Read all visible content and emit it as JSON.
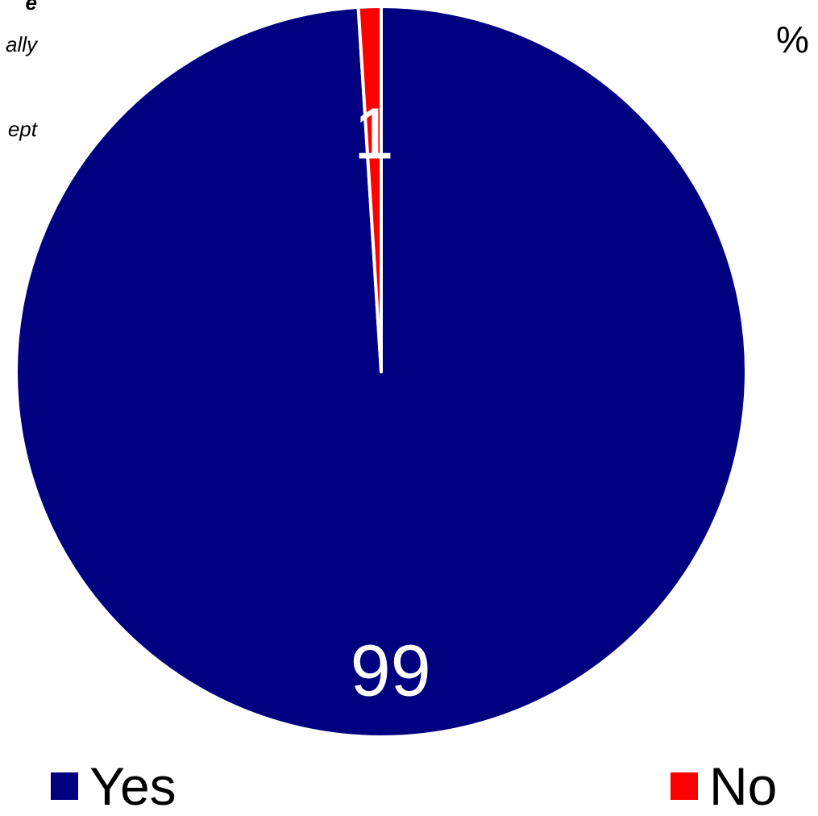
{
  "note_fragments": [
    "e",
    "ally",
    "ept"
  ],
  "percent_symbol": "%",
  "chart_data": {
    "type": "pie",
    "categories": [
      "Yes",
      "No"
    ],
    "values": [
      99,
      1
    ],
    "colors": [
      "#000080",
      "#ff0000"
    ],
    "data_labels": [
      "99",
      "1"
    ],
    "data_label_color": "#ffffff",
    "slice_border_color": "#ffffff",
    "start": "12 o'clock, clockwise",
    "legend_position": "bottom"
  },
  "legend": {
    "items": [
      {
        "label": "Yes",
        "color": "#000080"
      },
      {
        "label": "No",
        "color": "#ff0000"
      }
    ]
  }
}
